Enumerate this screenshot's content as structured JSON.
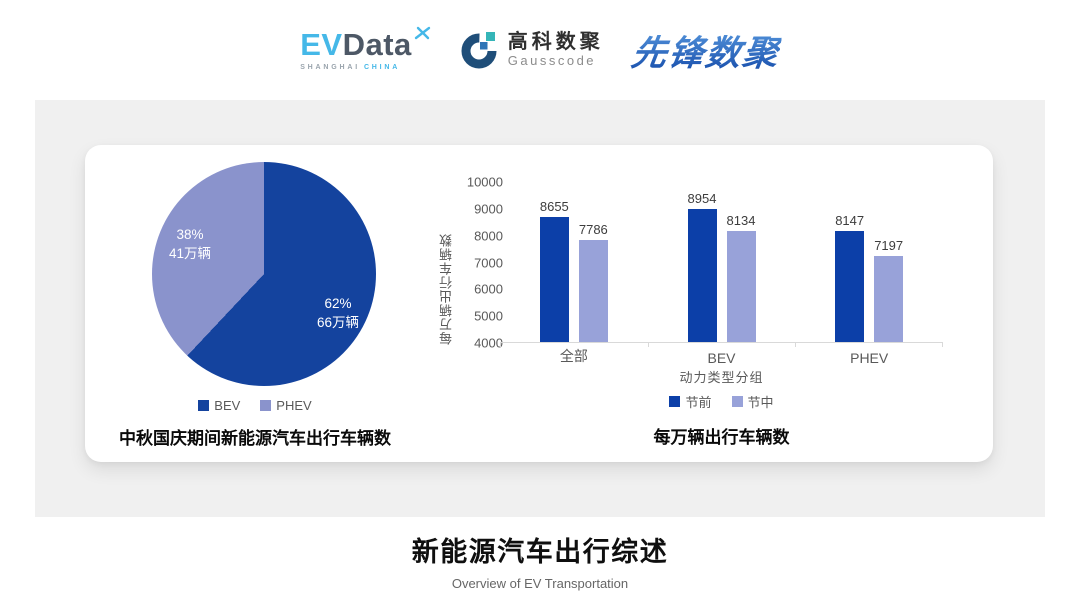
{
  "header": {
    "evdata": {
      "part1": "EV",
      "part2": "Data",
      "sub1": "SHANGHAI",
      "sub2": "CHINA"
    },
    "gausscode": {
      "cn": "高科数聚",
      "en": "Gausscode"
    },
    "pioneer": {
      "text": "先锋数聚"
    }
  },
  "footer": {
    "title": "新能源汽车出行综述",
    "subtitle": "Overview of EV Transportation"
  },
  "colors": {
    "panel_bg": "#f0f0f0",
    "card_bg": "#ffffff",
    "pie_dark": "#14439e",
    "pie_light": "#8a93cc",
    "bar_dark": "#0c3fa8",
    "bar_light": "#98a2d9",
    "evdata_blue": "#45b8e8",
    "evdata_dark": "#4d5866",
    "gauss_navy": "#1f4e79",
    "gauss_teal": "#35b5b8",
    "gauss_blue": "#2e75b6",
    "pioneer_blue": "#2d6bc8",
    "axis_text": "#595959",
    "value_text": "#3d3d3d"
  },
  "chart_data": [
    {
      "type": "pie",
      "title": "中秋国庆期间新能源汽车出行车辆数",
      "slices": [
        {
          "label": "BEV",
          "percent": 62,
          "percent_label": "62%",
          "value_label": "66万辆",
          "color": "#14439e"
        },
        {
          "label": "PHEV",
          "percent": 38,
          "percent_label": "38%",
          "value_label": "41万辆",
          "color": "#8a93cc"
        }
      ],
      "legend_position": "bottom"
    },
    {
      "type": "bar",
      "title": "每万辆出行车辆数",
      "categories": [
        "全部",
        "BEV",
        "PHEV"
      ],
      "series": [
        {
          "name": "节前",
          "values": [
            8655,
            8954,
            8147
          ],
          "color": "#0c3fa8"
        },
        {
          "name": "节中",
          "values": [
            7786,
            8134,
            7197
          ],
          "color": "#98a2d9"
        }
      ],
      "xlabel": "动力类型分组",
      "ylabel": "每万辆出行车辆数",
      "ylim": [
        4000,
        10000
      ],
      "yticks": [
        10000,
        9000,
        8000,
        7000,
        6000,
        5000,
        4000
      ],
      "grid": false,
      "legend_position": "bottom"
    }
  ]
}
